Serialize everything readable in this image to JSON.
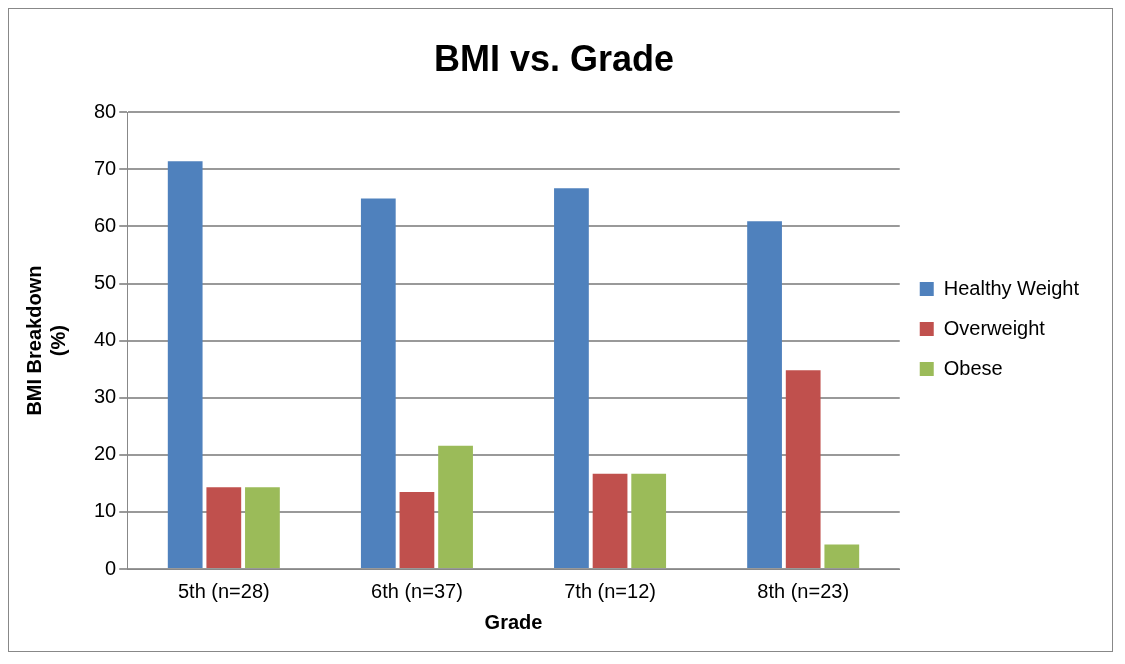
{
  "chart_data": {
    "type": "bar",
    "title": "BMI vs. Grade",
    "xlabel": "Grade",
    "ylabel": "BMI Breakdown (%)",
    "categories": [
      "5th (n=28)",
      "6th (n=37)",
      "7th (n=12)",
      "8th (n=23)"
    ],
    "series": [
      {
        "name": "Healthy Weight",
        "color": "#4f81bd",
        "values": [
          71.4,
          64.9,
          66.7,
          60.9
        ]
      },
      {
        "name": "Overweight",
        "color": "#c0504d",
        "values": [
          14.3,
          13.5,
          16.7,
          34.8
        ]
      },
      {
        "name": "Obese",
        "color": "#9bbb59",
        "values": [
          14.3,
          21.6,
          16.7,
          4.3
        ]
      }
    ],
    "ylim": [
      0,
      80
    ],
    "yticks": [
      0,
      10,
      20,
      30,
      40,
      50,
      60,
      70,
      80
    ],
    "grid": "y",
    "legend": "right"
  }
}
